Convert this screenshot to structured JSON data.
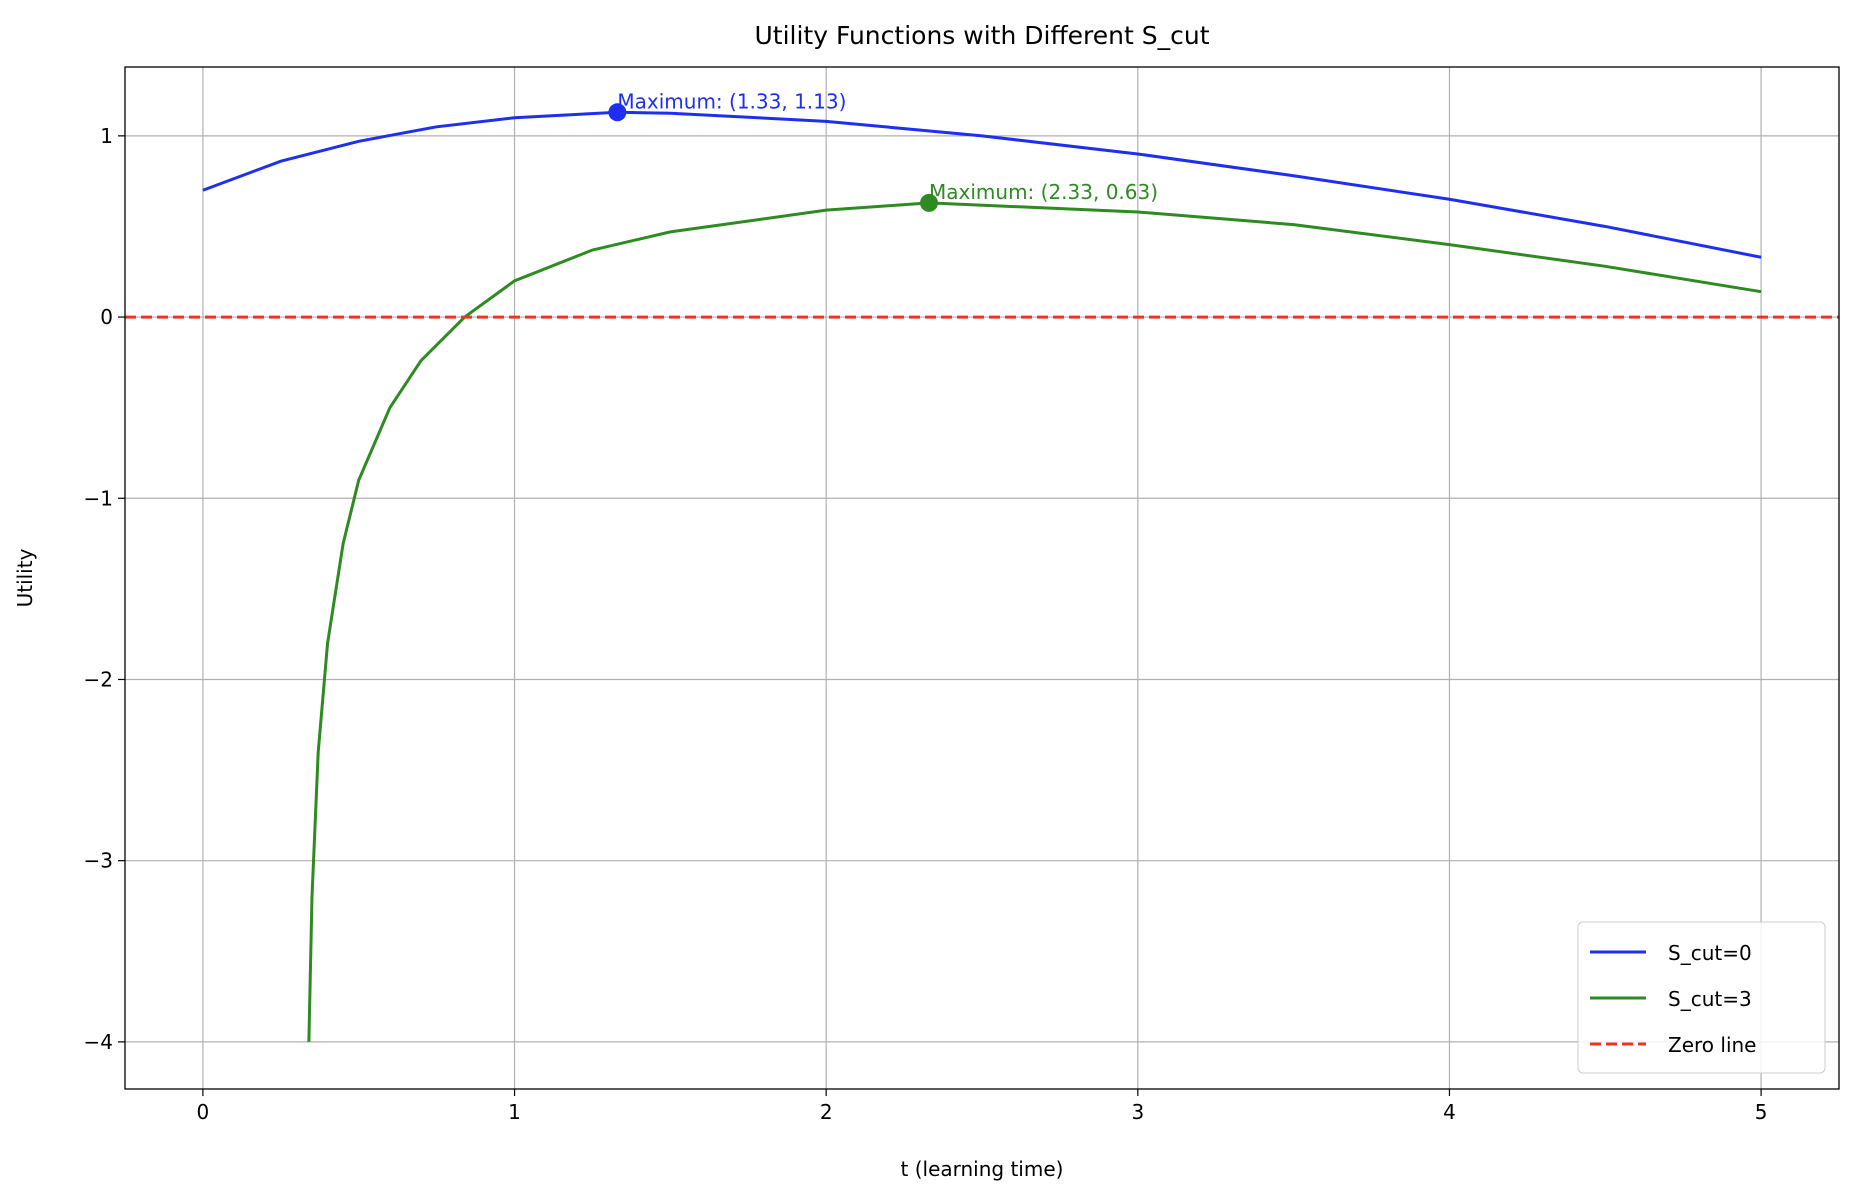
{
  "chart_data": {
    "type": "line",
    "title": "Utility Functions with Different S_cut",
    "x_label": "t (learning time)",
    "y_label": "Utility",
    "series": [
      {
        "name": "S_cut=0",
        "color": "#1f2ff0",
        "x": [
          0,
          0.25,
          0.5,
          0.75,
          1,
          1.33,
          1.5,
          2,
          2.5,
          3,
          3.5,
          4,
          4.5,
          5
        ],
        "values": [
          0.7,
          0.86,
          0.97,
          1.05,
          1.1,
          1.13,
          1.125,
          1.08,
          1.0,
          0.9,
          0.78,
          0.65,
          0.5,
          0.33
        ]
      },
      {
        "name": "S_cut=3",
        "color": "#2e8b22",
        "x": [
          0.34,
          0.35,
          0.37,
          0.4,
          0.45,
          0.5,
          0.6,
          0.7,
          0.84,
          1,
          1.25,
          1.5,
          2,
          2.33,
          3,
          3.5,
          4,
          4.5,
          5
        ],
        "values": [
          -4.0,
          -3.2,
          -2.4,
          -1.8,
          -1.25,
          -0.9,
          -0.5,
          -0.24,
          0,
          0.2,
          0.37,
          0.47,
          0.59,
          0.63,
          0.58,
          0.51,
          0.4,
          0.28,
          0.14
        ]
      }
    ],
    "hline": {
      "name": "Zero line",
      "color": "#ee3322",
      "value": 0
    },
    "annotations": [
      {
        "x": 1.33,
        "y": 1.13,
        "text": "Maximum: (1.33, 1.13)",
        "color": "#1f2ff0"
      },
      {
        "x": 2.33,
        "y": 0.63,
        "text": "Maximum: (2.33, 0.63)",
        "color": "#2e8b22"
      }
    ],
    "xlim": [
      -0.25,
      5.25
    ],
    "ylim": [
      -4.26,
      1.38
    ],
    "xticks": [
      0,
      1,
      2,
      3,
      4,
      5
    ],
    "yticks": [
      {
        "value": -4,
        "label": "−4"
      },
      {
        "value": -3,
        "label": "−3"
      },
      {
        "value": -2,
        "label": "−2"
      },
      {
        "value": -1,
        "label": "−1"
      },
      0,
      1
    ],
    "grid": true,
    "legend": "lower right"
  }
}
